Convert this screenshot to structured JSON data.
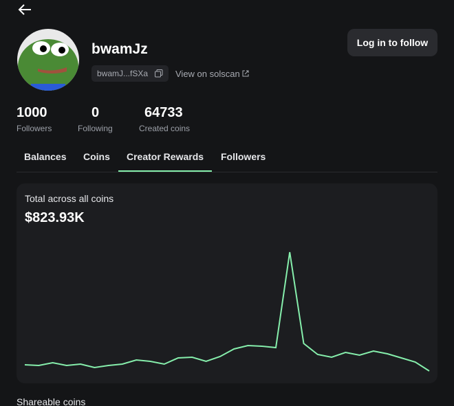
{
  "profile": {
    "name": "bwamJz",
    "address": "bwamJ...fSXa",
    "solscan_link": "View on solscan",
    "follow_button": "Log in to follow"
  },
  "stats": [
    {
      "value": 1000,
      "label": "Followers"
    },
    {
      "value": 0,
      "label": "Following"
    },
    {
      "value": 64733,
      "label": "Created coins"
    }
  ],
  "tabs": [
    {
      "label": "Balances",
      "active": false
    },
    {
      "label": "Coins",
      "active": false
    },
    {
      "label": "Creator Rewards",
      "active": true
    },
    {
      "label": "Followers",
      "active": false
    }
  ],
  "chart_data": {
    "type": "line",
    "title": "Total across all coins",
    "subtitle": "$823.93K",
    "color": "#86efac",
    "categories": [
      null,
      null,
      null,
      null,
      null,
      null,
      null,
      null,
      null,
      null,
      null,
      null,
      null,
      null,
      null,
      null,
      null,
      null,
      null,
      null,
      null,
      null,
      null,
      null,
      null,
      null,
      null,
      null,
      null,
      null
    ],
    "values": [
      29,
      28,
      32,
      28,
      30,
      25,
      28,
      30,
      36,
      34,
      30,
      39,
      40,
      34,
      41,
      52,
      57,
      56,
      54,
      193,
      60,
      44,
      40,
      47,
      43,
      49,
      45,
      39,
      33,
      20
    ]
  },
  "section_title": "Shareable coins"
}
